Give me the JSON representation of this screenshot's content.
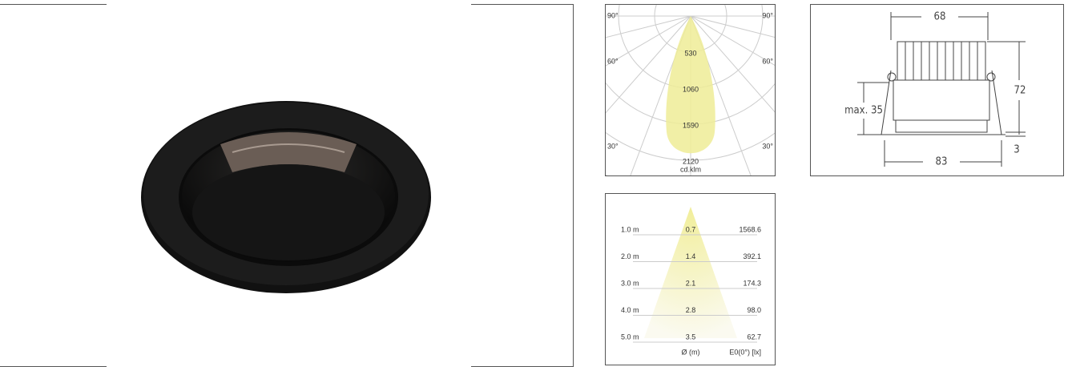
{
  "polar_diagram": {
    "angle_labels": [
      "90°",
      "60°",
      "30°"
    ],
    "intensity_labels": [
      "530",
      "1060",
      "1590",
      "2120"
    ],
    "unit": "cd.klm"
  },
  "cone_diagram": {
    "rows": [
      {
        "distance": "1.0 m",
        "diameter": "0.7",
        "illuminance": "1568.6"
      },
      {
        "distance": "2.0 m",
        "diameter": "1.4",
        "illuminance": "392.1"
      },
      {
        "distance": "3.0 m",
        "diameter": "2.1",
        "illuminance": "174.3"
      },
      {
        "distance": "4.0 m",
        "diameter": "2.8",
        "illuminance": "98.0"
      },
      {
        "distance": "5.0 m",
        "diameter": "3.5",
        "illuminance": "62.7"
      }
    ],
    "diameter_header": "Ø (m)",
    "illuminance_header": "E0(0°) [lx]"
  },
  "dimensions": {
    "width_top": "68",
    "height": "72",
    "recess": "max. 35",
    "flange": "3",
    "width_bottom": "83"
  }
}
